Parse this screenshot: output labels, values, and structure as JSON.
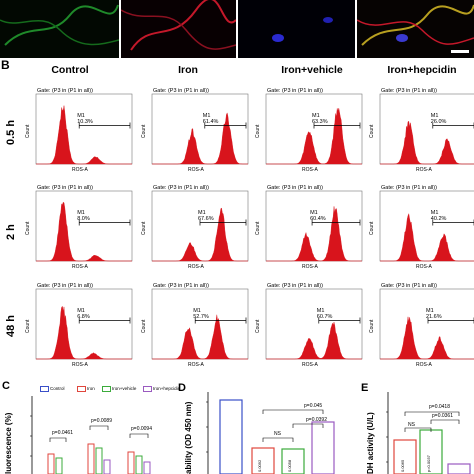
{
  "panel_labels": {
    "b": "B",
    "c": "C",
    "d": "D",
    "e": "E"
  },
  "columns": [
    "Control",
    "Iron",
    "Iron+vehicle",
    "Iron+hepcidin"
  ],
  "rows": [
    "0.5 h",
    "2 h",
    "48 h"
  ],
  "histogram": {
    "gate": "Gate: (P3 in (P1 in all))",
    "marker": "M1",
    "ylabel": "Count",
    "xlabel": "ROS-A",
    "percents": [
      [
        "10.3%",
        "61.4%",
        "63.3%",
        "26.0%"
      ],
      [
        "8.0%",
        "67.6%",
        "60.4%",
        "40.2%"
      ],
      [
        "6.8%",
        "52.7%",
        "60.7%",
        "21.6%"
      ]
    ]
  },
  "colors": {
    "histogram_fill": "#d8141c",
    "micro_green": "#1f8a2a",
    "micro_red": "#c4182a",
    "micro_blue": "#2a2ad0"
  },
  "panel_c": {
    "ytitle": "luorescence (%)",
    "legend": [
      "Control",
      "Iron",
      "Iron+vehicle",
      "Iron+hepcidin"
    ],
    "legend_colors": [
      "#3a4fc8",
      "#e0463c",
      "#3bab3b",
      "#9a5ac0"
    ],
    "pvalues_top": [
      "p=0.0461",
      "p=0.0089",
      "p=0.0094"
    ],
    "pvalues_bottom": [
      "p=0.0461",
      "p=0.0089",
      "p=0.0094"
    ]
  },
  "panel_d": {
    "ytitle": "ability (OD 450 nm)",
    "p_top": "p=0.045",
    "p_mid": "p=0.0392",
    "ns": "NS",
    "bar_labels": [
      "0.0092",
      "0.0058"
    ]
  },
  "panel_e": {
    "ytitle": "DH activity (U/L)",
    "p_top": "p=0.0418",
    "p_mid": "p=0.0361",
    "ns": "NS",
    "bar_labels": [
      "0.0065",
      "p=0.0037"
    ]
  }
}
